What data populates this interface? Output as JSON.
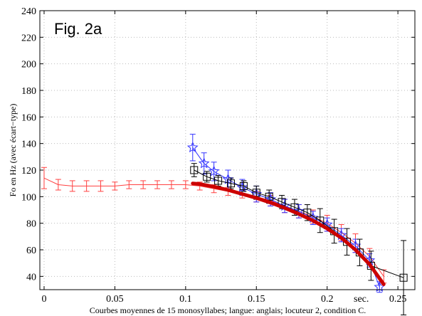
{
  "chart_data": {
    "type": "line",
    "annotation": "Fig. 2a",
    "xlabel": "Courbes moyennes de 15 monosyllabes; langue: anglais; locuteur 2, condition C.",
    "x_unit_label": "sec.",
    "ylabel": "Fo en Hz (avec écart−type)",
    "xlim": [
      -0.003,
      0.262
    ],
    "ylim": [
      30,
      240
    ],
    "xticks": [
      0,
      0.05,
      0.1,
      0.15,
      0.2,
      0.25
    ],
    "xtick_labels": [
      "0",
      "0.05",
      "0.1",
      "0.15",
      "0.2",
      "0.25"
    ],
    "yticks": [
      40,
      60,
      80,
      100,
      120,
      140,
      160,
      180,
      200,
      220,
      240
    ],
    "grid": true,
    "series": [
      {
        "color": "#ff4040",
        "marker": "errorbar",
        "x": [
          0,
          0.01,
          0.02,
          0.03,
          0.04,
          0.05,
          0.06,
          0.07,
          0.08,
          0.09,
          0.1,
          0.11,
          0.12,
          0.13,
          0.14,
          0.15,
          0.16,
          0.17,
          0.18,
          0.19,
          0.2,
          0.21,
          0.22,
          0.23,
          0.24
        ],
        "y": [
          114,
          109,
          108,
          108,
          108,
          108,
          109,
          109,
          109,
          109,
          109,
          108,
          106,
          104,
          102,
          100,
          97,
          93,
          89,
          85,
          80,
          73,
          65,
          55,
          40
        ],
        "err": [
          8,
          4,
          4,
          4,
          4,
          3,
          3,
          3,
          3,
          3,
          3,
          3,
          3,
          3,
          3,
          4,
          4,
          5,
          5,
          5,
          6,
          6,
          7,
          6,
          5
        ]
      },
      {
        "color": "#3333ff",
        "marker": "star",
        "x": [
          0.105,
          0.113,
          0.12,
          0.13,
          0.14,
          0.15,
          0.16,
          0.17,
          0.18,
          0.19,
          0.2,
          0.21,
          0.22,
          0.23,
          0.237
        ],
        "y": [
          137,
          125,
          119,
          113,
          107,
          102,
          98,
          93,
          89,
          84,
          79,
          71,
          63,
          52,
          32
        ],
        "err": [
          10,
          8,
          7,
          7,
          6,
          6,
          5,
          5,
          5,
          5,
          5,
          5,
          5,
          5,
          4
        ]
      },
      {
        "color": "#000000",
        "marker": "square",
        "x": [
          0.106,
          0.115,
          0.123,
          0.132,
          0.141,
          0.15,
          0.159,
          0.168,
          0.177,
          0.186,
          0.195,
          0.205,
          0.214,
          0.223,
          0.231,
          0.254
        ],
        "y": [
          120,
          115,
          112,
          110,
          108,
          103,
          100,
          96,
          92,
          88,
          82,
          74,
          66,
          58,
          48,
          39
        ],
        "err": [
          5,
          4,
          4,
          4,
          4,
          5,
          5,
          5,
          6,
          6,
          9,
          9,
          10,
          10,
          11,
          28
        ]
      },
      {
        "color": "#cc0000",
        "marker": "none",
        "style": "thick-fit",
        "x": [
          0.105,
          0.11,
          0.12,
          0.13,
          0.14,
          0.15,
          0.16,
          0.17,
          0.18,
          0.19,
          0.2,
          0.21,
          0.22,
          0.23,
          0.24
        ],
        "y": [
          110,
          109.5,
          107.5,
          105,
          102,
          99,
          95.5,
          91.5,
          87,
          82,
          76,
          69,
          60,
          49,
          34
        ]
      }
    ]
  }
}
